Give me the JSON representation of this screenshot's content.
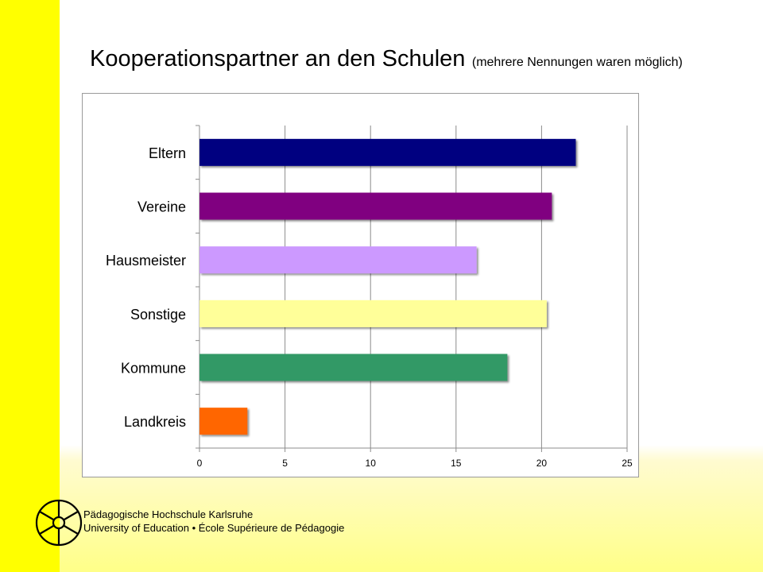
{
  "page": {
    "title": "Kooperationspartner an den Schulen",
    "subtitle": "(mehrere Nennungen waren möglich)"
  },
  "footer": {
    "line1": "Pädagogische Hochschule Karlsruhe",
    "line2": "University of Education • École Supérieure de Pédagogie"
  },
  "colors": {
    "left_band": "#ffff00",
    "logo_stroke": "#000000"
  },
  "chart_data": {
    "type": "bar",
    "orientation": "horizontal",
    "categories": [
      "Eltern",
      "Vereine",
      "Hausmeister",
      "Sonstige",
      "Kommune",
      "Landkreis"
    ],
    "values": [
      22,
      20.6,
      16.2,
      20.3,
      18,
      2.8
    ],
    "colors": [
      "#000080",
      "#800080",
      "#cc99ff",
      "#ffff99",
      "#339966",
      "#ff6600"
    ],
    "xlim": [
      0,
      25
    ],
    "xticks": [
      "0",
      "5",
      "10",
      "15",
      "20",
      "25"
    ],
    "grid": true,
    "legend": "none",
    "title": "",
    "xlabel": "",
    "ylabel": ""
  }
}
